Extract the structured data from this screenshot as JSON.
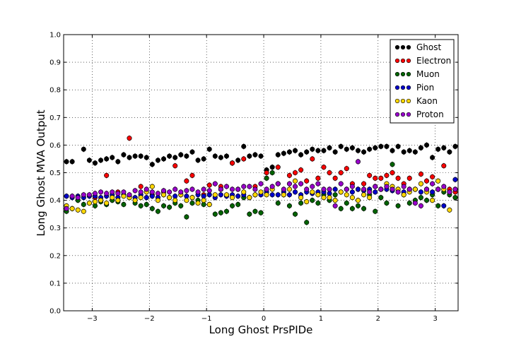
{
  "chart_data": {
    "type": "scatter",
    "xlabel": "Long Ghost PrsPIDe",
    "ylabel": "Long Ghost MVA Output",
    "xlim": [
      -3.5,
      3.4
    ],
    "ylim": [
      0.0,
      1.0
    ],
    "xticks": [
      -3,
      -2,
      -1,
      0,
      1,
      2,
      3
    ],
    "xtick_labels": [
      "−3",
      "−2",
      "−1",
      "0",
      "1",
      "2",
      "3"
    ],
    "yticks": [
      0.0,
      0.1,
      0.2,
      0.3,
      0.4,
      0.5,
      0.6,
      0.7,
      0.8,
      0.9,
      1.0
    ],
    "ytick_labels": [
      "0.0",
      "0.1",
      "0.2",
      "0.3",
      "0.4",
      "0.5",
      "0.6",
      "0.7",
      "0.8",
      "0.9",
      "1.0"
    ],
    "grid": true,
    "legend_position": "top-right",
    "series": [
      {
        "name": "Ghost",
        "color": "#000000",
        "x": [
          -3.45,
          -3.35,
          -3.15,
          -3.05,
          -2.95,
          -2.85,
          -2.75,
          -2.65,
          -2.55,
          -2.45,
          -2.35,
          -2.25,
          -2.15,
          -2.05,
          -1.95,
          -1.85,
          -1.75,
          -1.65,
          -1.55,
          -1.45,
          -1.35,
          -1.25,
          -1.15,
          -1.05,
          -0.95,
          -0.85,
          -0.75,
          -0.65,
          -0.55,
          -0.45,
          -0.35,
          -0.25,
          -0.15,
          -0.05,
          0.05,
          0.15,
          0.25,
          0.35,
          0.45,
          0.55,
          0.65,
          0.75,
          0.85,
          0.95,
          1.05,
          1.15,
          1.25,
          1.35,
          1.45,
          1.55,
          1.65,
          1.75,
          1.85,
          1.95,
          2.05,
          2.15,
          2.25,
          2.35,
          2.45,
          2.55,
          2.65,
          2.75,
          2.85,
          2.95,
          3.05,
          3.15,
          3.25,
          3.35
        ],
        "y": [
          0.54,
          0.54,
          0.585,
          0.545,
          0.535,
          0.545,
          0.55,
          0.555,
          0.54,
          0.565,
          0.555,
          0.56,
          0.56,
          0.555,
          0.53,
          0.545,
          0.55,
          0.56,
          0.555,
          0.565,
          0.56,
          0.575,
          0.545,
          0.55,
          0.585,
          0.56,
          0.555,
          0.56,
          0.535,
          0.545,
          0.595,
          0.56,
          0.565,
          0.56,
          0.51,
          0.52,
          0.565,
          0.57,
          0.575,
          0.58,
          0.565,
          0.575,
          0.585,
          0.58,
          0.58,
          0.59,
          0.575,
          0.595,
          0.585,
          0.59,
          0.58,
          0.575,
          0.585,
          0.59,
          0.595,
          0.595,
          0.58,
          0.595,
          0.575,
          0.58,
          0.575,
          0.59,
          0.6,
          0.555,
          0.585,
          0.59,
          0.575,
          0.595
        ]
      },
      {
        "name": "Electron",
        "color": "#ff0000",
        "x": [
          -2.95,
          -2.75,
          -2.55,
          -2.35,
          -2.15,
          -1.95,
          -1.75,
          -1.55,
          -1.35,
          -1.25,
          -1.05,
          -0.95,
          -0.75,
          -0.55,
          -0.35,
          -0.15,
          0.05,
          0.25,
          0.45,
          0.55,
          0.65,
          0.75,
          0.85,
          0.95,
          1.05,
          1.15,
          1.25,
          1.35,
          1.45,
          1.55,
          1.65,
          1.75,
          1.85,
          1.95,
          2.05,
          2.15,
          2.25,
          2.35,
          2.45,
          2.55,
          2.65,
          2.75,
          2.85,
          2.95,
          3.05,
          3.15,
          3.25,
          3.35
        ],
        "y": [
          0.41,
          0.49,
          0.43,
          0.625,
          0.45,
          0.42,
          0.43,
          0.525,
          0.47,
          0.49,
          0.42,
          0.455,
          0.45,
          0.535,
          0.55,
          0.45,
          0.5,
          0.52,
          0.49,
          0.5,
          0.51,
          0.47,
          0.55,
          0.48,
          0.52,
          0.5,
          0.48,
          0.5,
          0.515,
          0.46,
          0.44,
          0.46,
          0.49,
          0.48,
          0.48,
          0.49,
          0.5,
          0.48,
          0.46,
          0.48,
          0.44,
          0.495,
          0.47,
          0.485,
          0.44,
          0.525,
          0.44,
          0.43
        ]
      },
      {
        "name": "Muon",
        "color": "#006400",
        "x": [
          -3.45,
          -3.35,
          -3.25,
          -3.15,
          -3.05,
          -2.95,
          -2.85,
          -2.75,
          -2.65,
          -2.55,
          -2.45,
          -2.35,
          -2.25,
          -2.15,
          -2.05,
          -1.95,
          -1.85,
          -1.75,
          -1.65,
          -1.55,
          -1.45,
          -1.35,
          -1.25,
          -1.15,
          -1.05,
          -0.95,
          -0.85,
          -0.75,
          -0.65,
          -0.55,
          -0.45,
          -0.35,
          -0.25,
          -0.15,
          -0.05,
          0.05,
          0.15,
          0.25,
          0.35,
          0.45,
          0.55,
          0.65,
          0.75,
          0.85,
          0.95,
          1.05,
          1.15,
          1.25,
          1.35,
          1.45,
          1.55,
          1.65,
          1.75,
          1.85,
          1.95,
          2.05,
          2.15,
          2.25,
          2.35,
          2.45,
          2.55,
          2.65,
          2.75,
          2.85,
          2.95,
          3.05,
          3.15,
          3.25,
          3.35
        ],
        "y": [
          0.36,
          0.37,
          0.4,
          0.385,
          0.39,
          0.38,
          0.395,
          0.385,
          0.4,
          0.395,
          0.385,
          0.41,
          0.39,
          0.38,
          0.385,
          0.37,
          0.36,
          0.38,
          0.375,
          0.39,
          0.38,
          0.34,
          0.39,
          0.4,
          0.385,
          0.385,
          0.35,
          0.355,
          0.36,
          0.38,
          0.385,
          0.41,
          0.35,
          0.36,
          0.355,
          0.48,
          0.5,
          0.39,
          0.42,
          0.38,
          0.35,
          0.39,
          0.32,
          0.4,
          0.39,
          0.42,
          0.4,
          0.42,
          0.37,
          0.39,
          0.37,
          0.38,
          0.37,
          0.42,
          0.36,
          0.41,
          0.39,
          0.53,
          0.38,
          0.42,
          0.39,
          0.4,
          0.41,
          0.4,
          0.42,
          0.38,
          0.43,
          0.42,
          0.41
        ]
      },
      {
        "name": "Pion",
        "color": "#0000cc",
        "x": [
          -3.45,
          -3.35,
          -3.25,
          -3.15,
          -3.05,
          -2.95,
          -2.85,
          -2.75,
          -2.65,
          -2.55,
          -2.45,
          -2.35,
          -2.25,
          -2.15,
          -2.05,
          -1.95,
          -1.85,
          -1.75,
          -1.65,
          -1.55,
          -1.45,
          -1.35,
          -1.25,
          -1.15,
          -1.05,
          -0.95,
          -0.85,
          -0.75,
          -0.65,
          -0.55,
          -0.45,
          -0.35,
          -0.25,
          -0.15,
          -0.05,
          0.05,
          0.15,
          0.25,
          0.35,
          0.45,
          0.55,
          0.65,
          0.75,
          0.85,
          0.95,
          1.05,
          1.15,
          1.25,
          1.35,
          1.45,
          1.55,
          1.65,
          1.75,
          1.85,
          1.95,
          2.05,
          2.15,
          2.25,
          2.35,
          2.45,
          2.55,
          2.65,
          2.75,
          2.85,
          2.95,
          3.05,
          3.15,
          3.25,
          3.35
        ],
        "y": [
          0.415,
          0.41,
          0.415,
          0.41,
          0.415,
          0.415,
          0.41,
          0.415,
          0.42,
          0.41,
          0.42,
          0.415,
          0.41,
          0.42,
          0.41,
          0.415,
          0.41,
          0.42,
          0.41,
          0.415,
          0.42,
          0.415,
          0.41,
          0.42,
          0.415,
          0.42,
          0.41,
          0.42,
          0.415,
          0.42,
          0.415,
          0.42,
          0.41,
          0.42,
          0.42,
          0.43,
          0.42,
          0.42,
          0.43,
          0.42,
          0.43,
          0.42,
          0.43,
          0.425,
          0.43,
          0.43,
          0.425,
          0.44,
          0.43,
          0.44,
          0.43,
          0.44,
          0.435,
          0.44,
          0.43,
          0.44,
          0.44,
          0.435,
          0.44,
          0.43,
          0.44,
          0.44,
          0.43,
          0.44,
          0.43,
          0.44,
          0.38,
          0.43,
          0.475
        ]
      },
      {
        "name": "Kaon",
        "color": "#ffd700",
        "x": [
          -3.45,
          -3.35,
          -3.25,
          -3.15,
          -3.05,
          -2.95,
          -2.85,
          -2.75,
          -2.65,
          -2.55,
          -2.45,
          -2.35,
          -2.25,
          -2.15,
          -2.05,
          -1.95,
          -1.85,
          -1.75,
          -1.65,
          -1.55,
          -1.45,
          -1.35,
          -1.25,
          -1.15,
          -1.05,
          -0.95,
          -0.85,
          -0.75,
          -0.65,
          -0.55,
          -0.45,
          -0.35,
          -0.25,
          -0.15,
          -0.05,
          0.05,
          0.15,
          0.25,
          0.35,
          0.45,
          0.55,
          0.65,
          0.75,
          0.85,
          0.95,
          1.05,
          1.15,
          1.25,
          1.35,
          1.45,
          1.55,
          1.65,
          1.75,
          1.85,
          1.95,
          2.05,
          2.15,
          2.25,
          2.35,
          2.45,
          2.55,
          2.65,
          2.75,
          2.85,
          2.95,
          3.05,
          3.15,
          3.25,
          3.35
        ],
        "y": [
          0.38,
          0.37,
          0.365,
          0.36,
          0.39,
          0.395,
          0.4,
          0.39,
          0.41,
          0.4,
          0.415,
          0.41,
          0.4,
          0.41,
          0.43,
          0.45,
          0.4,
          0.42,
          0.41,
          0.4,
          0.42,
          0.4,
          0.41,
          0.39,
          0.4,
          0.385,
          0.42,
          0.44,
          0.42,
          0.41,
          0.44,
          0.43,
          0.41,
          0.42,
          0.43,
          0.42,
          0.44,
          0.46,
          0.42,
          0.44,
          0.47,
          0.41,
          0.395,
          0.43,
          0.42,
          0.41,
          0.41,
          0.4,
          0.43,
          0.42,
          0.41,
          0.4,
          0.42,
          0.41,
          0.45,
          0.44,
          0.46,
          0.45,
          0.44,
          0.42,
          0.43,
          0.44,
          0.46,
          0.43,
          0.4,
          0.47,
          0.44,
          0.365,
          0.44
        ]
      },
      {
        "name": "Proton",
        "color": "#9900cc",
        "x": [
          -3.45,
          -3.35,
          -3.25,
          -3.15,
          -3.05,
          -2.95,
          -2.85,
          -2.75,
          -2.65,
          -2.55,
          -2.45,
          -2.35,
          -2.25,
          -2.15,
          -2.05,
          -1.95,
          -1.85,
          -1.75,
          -1.65,
          -1.55,
          -1.45,
          -1.35,
          -1.25,
          -1.15,
          -1.05,
          -0.95,
          -0.85,
          -0.75,
          -0.65,
          -0.55,
          -0.45,
          -0.35,
          -0.25,
          -0.15,
          -0.05,
          0.05,
          0.15,
          0.25,
          0.35,
          0.45,
          0.55,
          0.65,
          0.75,
          0.85,
          0.95,
          1.05,
          1.15,
          1.25,
          1.35,
          1.45,
          1.55,
          1.65,
          1.75,
          1.85,
          1.95,
          2.05,
          2.15,
          2.25,
          2.35,
          2.45,
          2.55,
          2.65,
          2.75,
          2.85,
          2.95,
          3.05,
          3.15,
          3.25,
          3.35
        ],
        "y": [
          0.37,
          0.415,
          0.41,
          0.42,
          0.42,
          0.425,
          0.43,
          0.425,
          0.43,
          0.425,
          0.43,
          0.42,
          0.435,
          0.43,
          0.44,
          0.43,
          0.425,
          0.435,
          0.43,
          0.44,
          0.43,
          0.435,
          0.44,
          0.43,
          0.44,
          0.435,
          0.46,
          0.44,
          0.45,
          0.44,
          0.44,
          0.45,
          0.45,
          0.44,
          0.46,
          0.44,
          0.45,
          0.46,
          0.44,
          0.46,
          0.45,
          0.46,
          0.44,
          0.45,
          0.46,
          0.44,
          0.44,
          0.38,
          0.46,
          0.44,
          0.45,
          0.54,
          0.44,
          0.43,
          0.45,
          0.44,
          0.45,
          0.44,
          0.43,
          0.45,
          0.44,
          0.39,
          0.38,
          0.44,
          0.46,
          0.44,
          0.45,
          0.43,
          0.44
        ]
      }
    ]
  }
}
